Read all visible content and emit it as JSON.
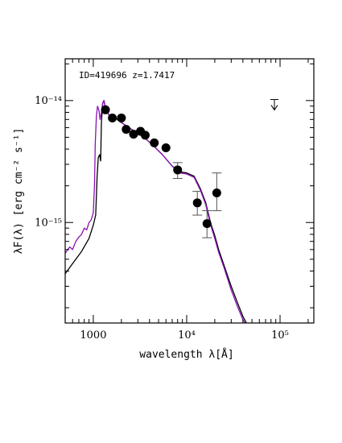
{
  "chart_data": {
    "type": "scatter",
    "annotation": "ID=419696 z=1.7417",
    "xlabel": "wavelength λ[Å]",
    "ylabel": "λF(λ) [erg cm⁻² s⁻¹]",
    "xscale": "log",
    "yscale": "log",
    "xlim": [
      500,
      230000
    ],
    "ylim": [
      1.5e-16,
      2.2e-14
    ],
    "x_tick_labels": [
      {
        "value": 1000,
        "label": "1000"
      },
      {
        "value": 10000,
        "label": "10⁴"
      },
      {
        "value": 100000,
        "label": "10⁵"
      }
    ],
    "y_tick_labels": [
      {
        "value": 1e-14,
        "label": "10⁻¹⁴"
      },
      {
        "value": 1e-15,
        "label": "10⁻¹⁵"
      }
    ],
    "photometry": [
      {
        "x": 1350,
        "y": 8.4e-15
      },
      {
        "x": 1600,
        "y": 7.2e-15
      },
      {
        "x": 2000,
        "y": 7.2e-15
      },
      {
        "x": 2250,
        "y": 5.8e-15
      },
      {
        "x": 2700,
        "y": 5.3e-15
      },
      {
        "x": 3200,
        "y": 5.6e-15
      },
      {
        "x": 3600,
        "y": 5.2e-15
      },
      {
        "x": 4500,
        "y": 4.5e-15
      },
      {
        "x": 6000,
        "y": 4.1e-15
      },
      {
        "x": 8000,
        "y": 2.7e-15,
        "ylo": 2.3e-15,
        "yhi": 3.1e-15
      },
      {
        "x": 13000,
        "y": 1.45e-15,
        "ylo": 1.15e-15,
        "yhi": 1.8e-15
      },
      {
        "x": 16500,
        "y": 9.8e-16,
        "ylo": 7.5e-16,
        "yhi": 1.25e-15
      },
      {
        "x": 21000,
        "y": 1.75e-15,
        "ylo": 1.25e-15,
        "yhi": 2.55e-15
      }
    ],
    "upper_limits": [
      {
        "x": 87000,
        "y": 1.02e-14
      }
    ],
    "series": [
      {
        "color": "#000000",
        "points": [
          [
            500,
            3.8e-16
          ],
          [
            600,
            4.6e-16
          ],
          [
            750,
            5.8e-16
          ],
          [
            900,
            7.4e-16
          ],
          [
            1000,
            9.5e-16
          ],
          [
            1060,
            1.15e-15
          ],
          [
            1100,
            2.4e-15
          ],
          [
            1130,
            3.4e-15
          ],
          [
            1170,
            3.6e-15
          ],
          [
            1200,
            3.2e-15
          ],
          [
            1220,
            6.5e-15
          ],
          [
            1260,
            9.5e-15
          ],
          [
            1300,
            1e-14
          ],
          [
            1360,
            8.5e-15
          ],
          [
            1500,
            7.4e-15
          ],
          [
            1700,
            7.2e-15
          ],
          [
            2000,
            6.6e-15
          ],
          [
            2400,
            6e-15
          ],
          [
            3000,
            5.4e-15
          ],
          [
            3600,
            4.9e-15
          ],
          [
            4500,
            4.2e-15
          ],
          [
            5500,
            3.6e-15
          ],
          [
            7000,
            2.9e-15
          ],
          [
            8500,
            2.6e-15
          ],
          [
            10000,
            2.55e-15
          ],
          [
            12000,
            2.4e-15
          ],
          [
            14000,
            1.9e-15
          ],
          [
            16000,
            1.45e-15
          ],
          [
            18000,
            1e-15
          ],
          [
            20000,
            7.8e-16
          ],
          [
            22000,
            6e-16
          ],
          [
            25000,
            4.5e-16
          ],
          [
            30000,
            3e-16
          ],
          [
            35000,
            2.2e-16
          ],
          [
            40000,
            1.7e-16
          ],
          [
            47000,
            1.35e-16
          ]
        ]
      },
      {
        "color": "#8a10b5",
        "points": [
          [
            500,
            5.6e-16
          ],
          [
            560,
            6.3e-16
          ],
          [
            600,
            6e-16
          ],
          [
            650,
            7e-16
          ],
          [
            700,
            7.6e-16
          ],
          [
            750,
            8e-16
          ],
          [
            800,
            9e-16
          ],
          [
            850,
            8.7e-16
          ],
          [
            900,
            1e-15
          ],
          [
            950,
            1.05e-15
          ],
          [
            1000,
            1.2e-15
          ],
          [
            1030,
            2e-15
          ],
          [
            1050,
            4.5e-15
          ],
          [
            1080,
            7.5e-15
          ],
          [
            1110,
            9e-15
          ],
          [
            1150,
            8.3e-15
          ],
          [
            1180,
            7e-15
          ],
          [
            1220,
            8e-15
          ],
          [
            1260,
            9.5e-15
          ],
          [
            1300,
            1e-14
          ],
          [
            1360,
            8.5e-15
          ],
          [
            1500,
            7.4e-15
          ],
          [
            1700,
            7.2e-15
          ],
          [
            2000,
            6.6e-15
          ],
          [
            2400,
            6e-15
          ],
          [
            3000,
            5.4e-15
          ],
          [
            3600,
            4.9e-15
          ],
          [
            4500,
            4.2e-15
          ],
          [
            5500,
            3.6e-15
          ],
          [
            7000,
            2.9e-15
          ],
          [
            8500,
            2.55e-15
          ],
          [
            10000,
            2.5e-15
          ],
          [
            12000,
            2.35e-15
          ],
          [
            14000,
            1.85e-15
          ],
          [
            16000,
            1.4e-15
          ],
          [
            18000,
            9.6e-16
          ],
          [
            20000,
            7.4e-16
          ],
          [
            22000,
            5.7e-16
          ],
          [
            25000,
            4.3e-16
          ],
          [
            30000,
            2.8e-16
          ],
          [
            35000,
            2.05e-16
          ],
          [
            40000,
            1.6e-16
          ],
          [
            47000,
            1.3e-16
          ]
        ]
      }
    ]
  }
}
